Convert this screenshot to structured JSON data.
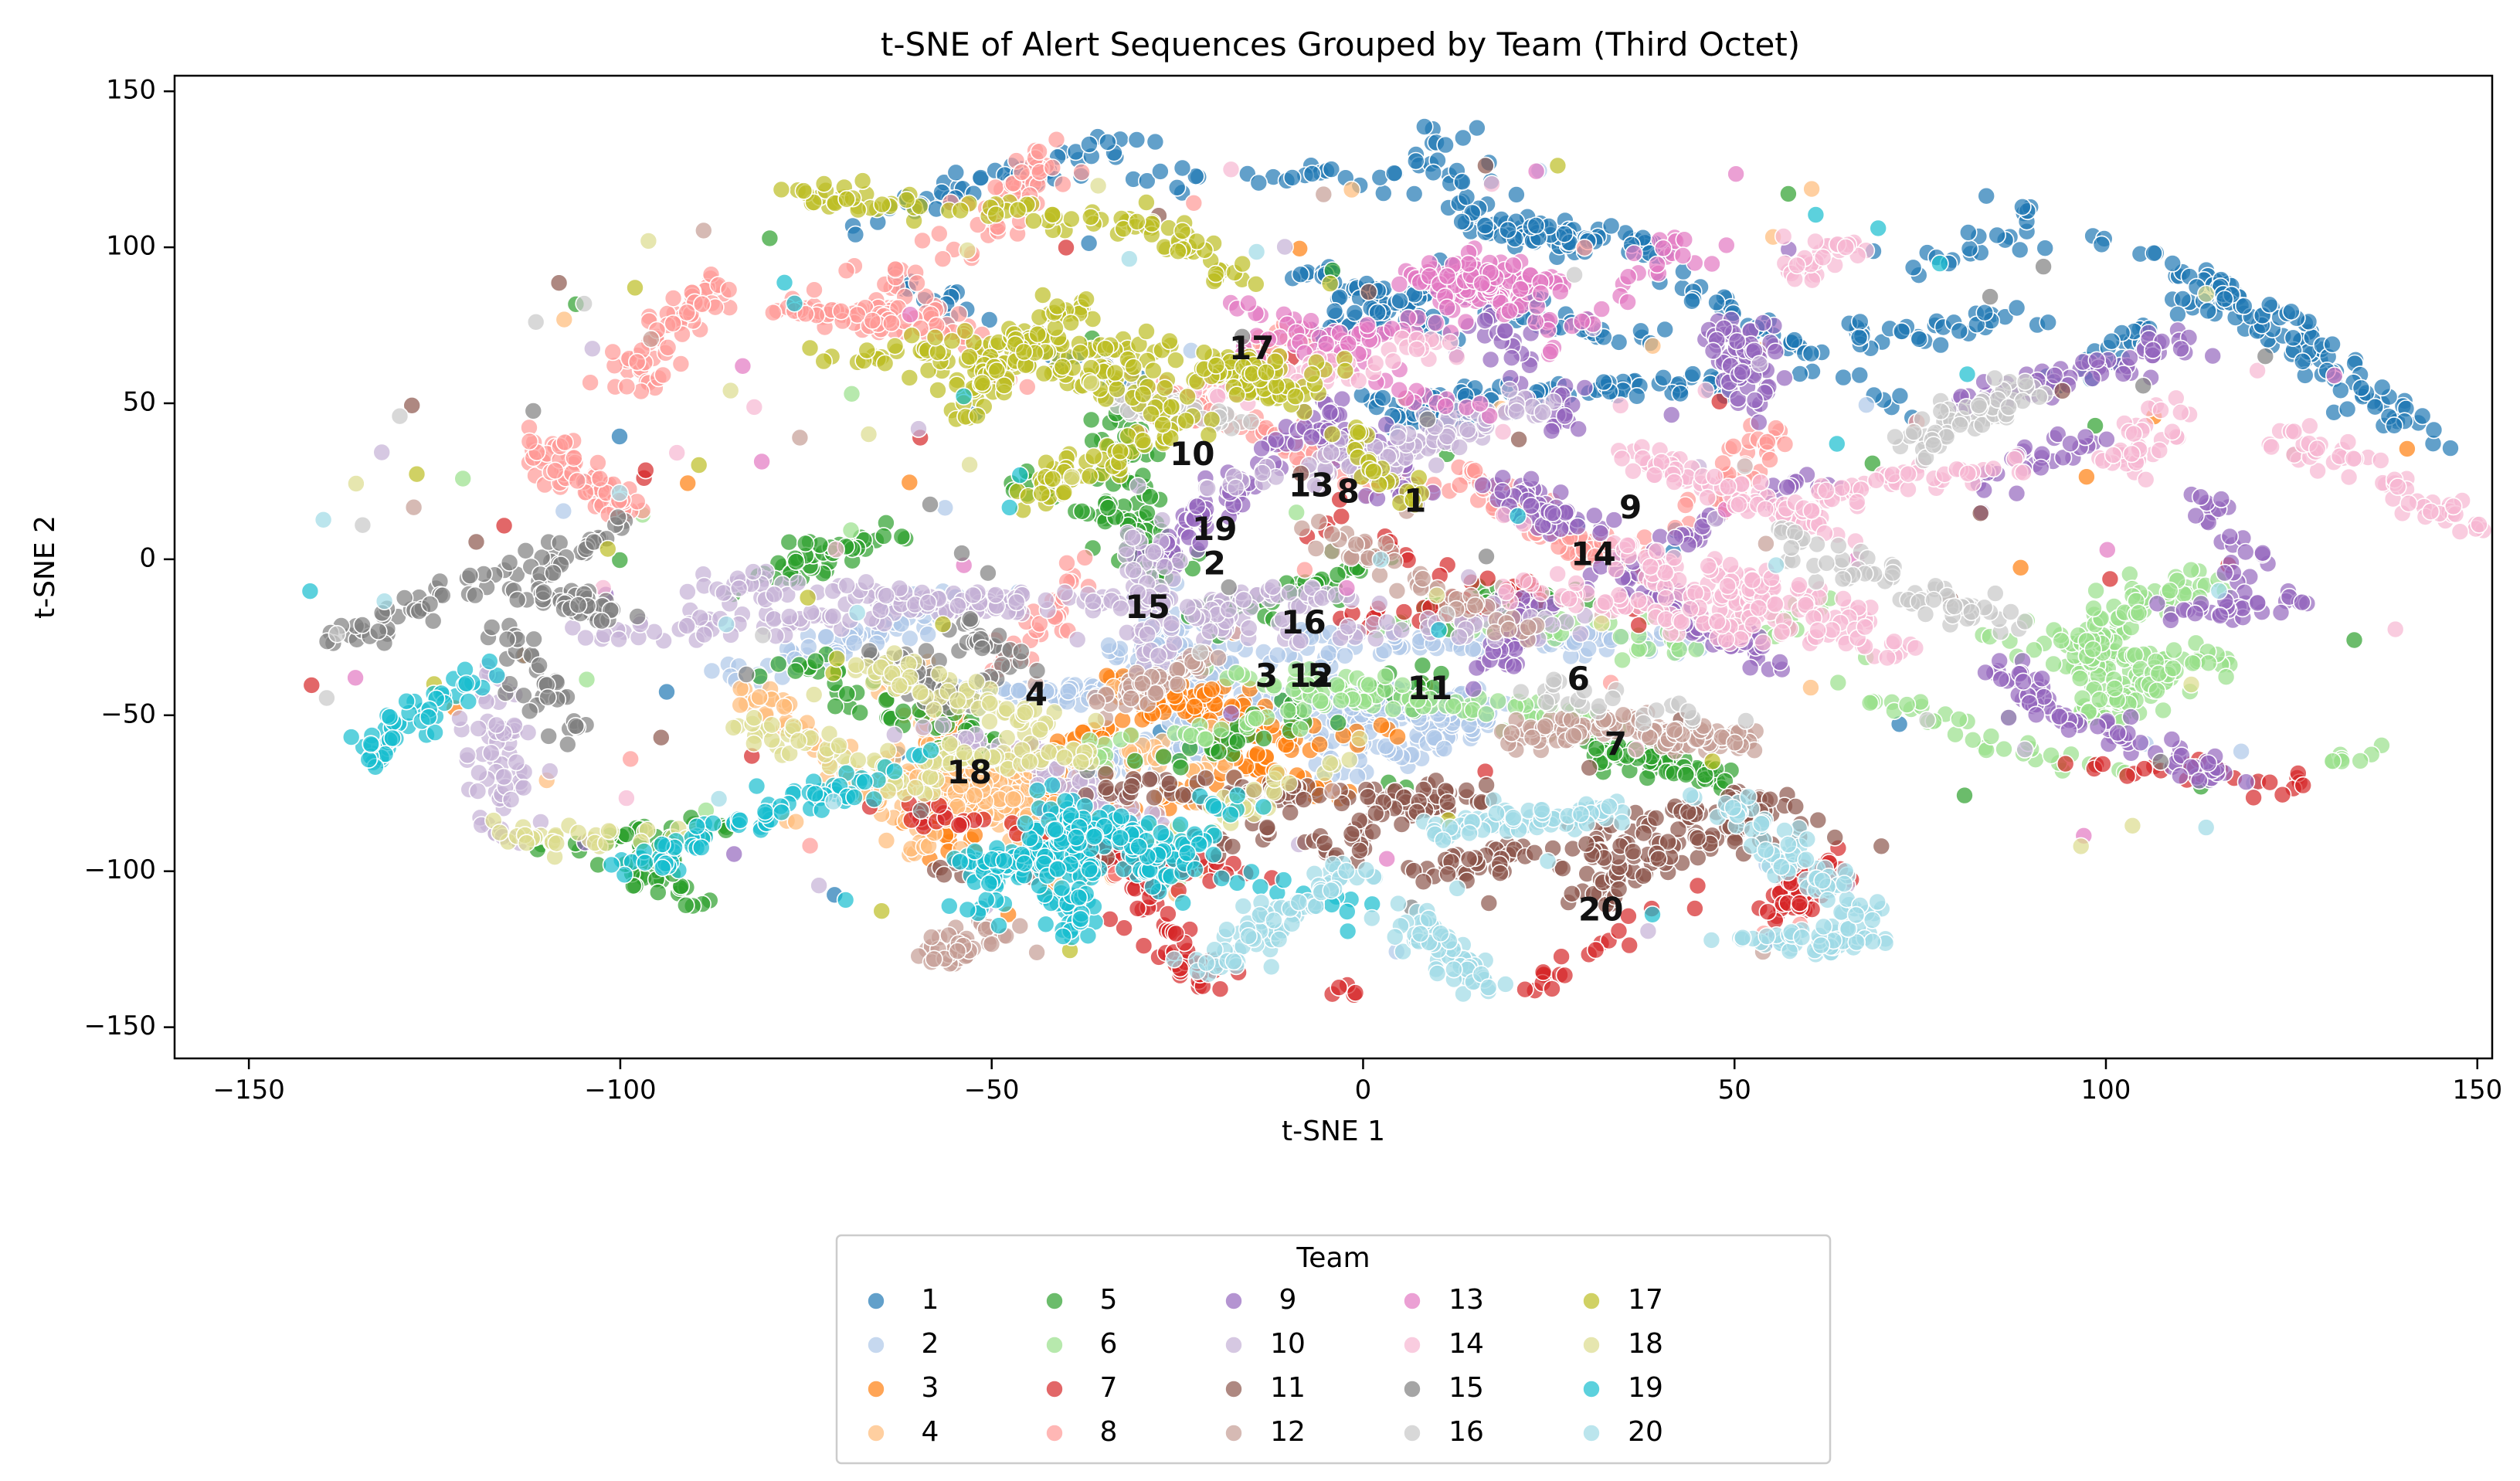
{
  "chart_data": {
    "type": "scatter",
    "title": "t-SNE of Alert Sequences Grouped by Team (Third Octet)",
    "xlabel": "t-SNE 1",
    "ylabel": "t-SNE 2",
    "xlim": [
      -160,
      152
    ],
    "ylim": [
      -160,
      155
    ],
    "xticks": [
      -150,
      -100,
      -50,
      0,
      50,
      100,
      150
    ],
    "yticks": [
      -150,
      -100,
      -50,
      0,
      50,
      100,
      150
    ],
    "xtick_labels": [
      "−150",
      "−100",
      "−50",
      "0",
      "50",
      "100",
      "150"
    ],
    "ytick_labels": [
      "−150",
      "−100",
      "−50",
      "0",
      "50",
      "100",
      "150"
    ],
    "grid": false,
    "legend": {
      "title": "Team",
      "placement": "bottom-center",
      "columns": 6
    },
    "series": [
      {
        "name": "1",
        "color": "#1f77b4",
        "cluster": [
          40,
          70,
          70,
          45,
          18,
          6
        ],
        "label_pos": [
          7,
          18
        ]
      },
      {
        "name": "2",
        "color": "#aec7e8",
        "cluster": [
          -15,
          -35,
          35,
          25,
          12,
          -4
        ],
        "label_pos": [
          -20,
          -2
        ]
      },
      {
        "name": "3",
        "color": "#ff7f0e",
        "cluster": [
          -35,
          -60,
          30,
          25,
          6,
          0
        ],
        "label_pos": [
          -13,
          -38
        ]
      },
      {
        "name": "4",
        "color": "#ffbb78",
        "cluster": [
          -50,
          -80,
          25,
          20,
          8,
          0
        ],
        "label_pos": [
          -44,
          -44
        ]
      },
      {
        "name": "5",
        "color": "#2ca02c",
        "cluster": [
          -15,
          -45,
          45,
          40,
          10,
          0
        ],
        "label_pos": [
          -6,
          -38
        ]
      },
      {
        "name": "6",
        "color": "#98df8a",
        "cluster": [
          90,
          -40,
          60,
          35,
          10,
          0
        ],
        "label_pos": [
          29,
          -39
        ]
      },
      {
        "name": "7",
        "color": "#d62728",
        "cluster": [
          30,
          -70,
          60,
          45,
          8,
          0
        ],
        "label_pos": [
          34,
          -60
        ]
      },
      {
        "name": "8",
        "color": "#ff9896",
        "cluster": [
          -50,
          45,
          60,
          55,
          10,
          0
        ],
        "label_pos": [
          -2,
          21
        ]
      },
      {
        "name": "9",
        "color": "#9467bd",
        "cluster": [
          50,
          0,
          70,
          55,
          14,
          0
        ],
        "label_pos": [
          36,
          16
        ]
      },
      {
        "name": "10",
        "color": "#c5b0d5",
        "cluster": [
          -40,
          0,
          60,
          50,
          10,
          0
        ],
        "label_pos": [
          -23,
          33
        ]
      },
      {
        "name": "11",
        "color": "#8c564b",
        "cluster": [
          20,
          -85,
          35,
          10,
          6,
          0
        ],
        "label_pos": [
          9,
          -42
        ]
      },
      {
        "name": "12",
        "color": "#c49c94",
        "cluster": [
          0,
          0,
          70,
          60,
          5,
          0
        ],
        "label_pos": [
          -7,
          -38
        ]
      },
      {
        "name": "13",
        "color": "#e377c2",
        "cluster": [
          -5,
          80,
          30,
          25,
          6,
          0
        ],
        "label_pos": [
          -7,
          23
        ]
      },
      {
        "name": "14",
        "color": "#f7b6d2",
        "cluster": [
          60,
          30,
          60,
          50,
          10,
          0
        ],
        "label_pos": [
          31,
          1
        ]
      },
      {
        "name": "15",
        "color": "#7f7f7f",
        "cluster": [
          -60,
          -40,
          60,
          40,
          5,
          0
        ],
        "label_pos": [
          -29,
          -16
        ]
      },
      {
        "name": "16",
        "color": "#c7c7c7",
        "cluster": [
          10,
          10,
          70,
          60,
          4,
          0
        ],
        "label_pos": [
          -8,
          -21
        ]
      },
      {
        "name": "17",
        "color": "#bcbd22",
        "cluster": [
          -40,
          70,
          60,
          45,
          10,
          0
        ],
        "label_pos": [
          -15,
          67
        ]
      },
      {
        "name": "18",
        "color": "#dbdb8d",
        "cluster": [
          -70,
          -60,
          40,
          30,
          5,
          0
        ],
        "label_pos": [
          -53,
          -69
        ]
      },
      {
        "name": "19",
        "color": "#17becf",
        "cluster": [
          -60,
          -90,
          50,
          30,
          10,
          0
        ],
        "label_pos": [
          -20,
          9
        ]
      },
      {
        "name": "20",
        "color": "#9edae5",
        "cluster": [
          30,
          -110,
          60,
          30,
          5,
          0
        ],
        "label_pos": [
          32,
          -113
        ]
      }
    ]
  }
}
